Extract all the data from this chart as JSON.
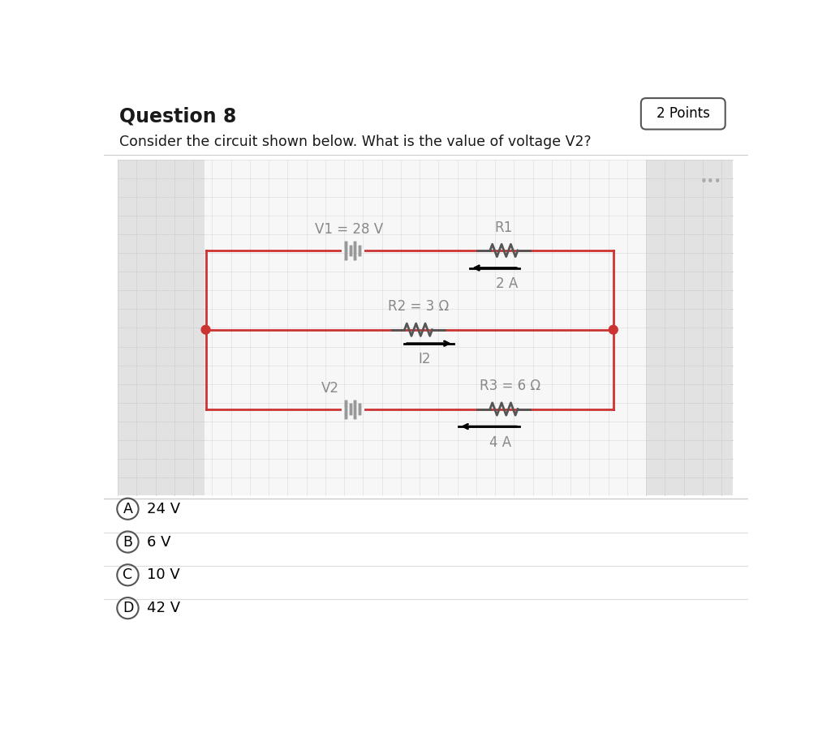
{
  "title": "Question 8",
  "points_label": "2 Points",
  "subtitle": "Consider the circuit shown below. What is the value of voltage V2?",
  "choice_labels": [
    "A",
    "B",
    "C",
    "D"
  ],
  "choice_texts": [
    "24 V",
    "6 V",
    "10 V",
    "42 V"
  ],
  "circuit": {
    "v1_label": "V1 = 28 V",
    "v2_label": "V2",
    "r1_label": "R1",
    "r2_label": "R2 = 3 Ω",
    "r3_label": "R3 = 6 Ω",
    "i1_label": "2 A",
    "i2_label": "I2",
    "i3_label": "4 A"
  },
  "white": "#ffffff",
  "black": "#000000",
  "title_color": "#1a1a1a",
  "label_gray": "#888888",
  "grid_color": "#e0e0e0",
  "wire_color": "#cc3333",
  "dot_color": "#cc3333",
  "panel_gray": "#e8e8e8",
  "circuit_bg": "#f5f5f5",
  "sep_color": "#cccccc",
  "choice_sep": "#dddddd"
}
